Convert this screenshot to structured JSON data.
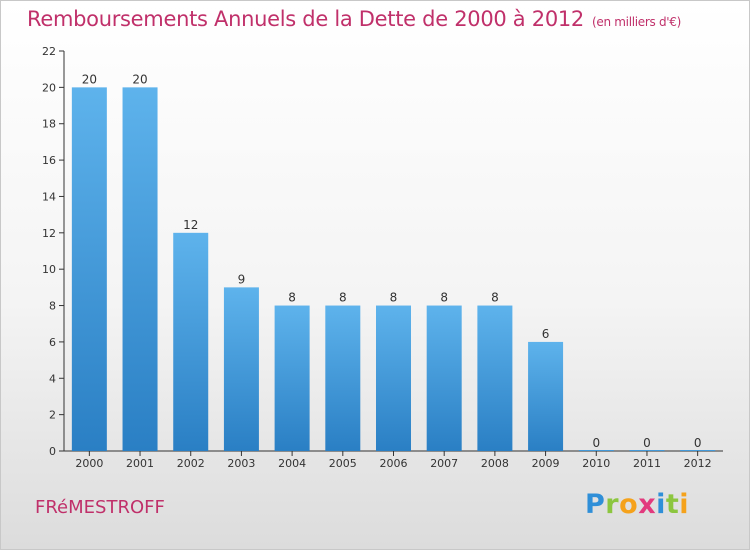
{
  "title": "Remboursements Annuels de la Dette de 2000 à 2012",
  "unit": "(en milliers d'€)",
  "commune": "FRéMESTROFF",
  "logo": {
    "letters": [
      {
        "char": "P",
        "color": "#2f8fd8"
      },
      {
        "char": "r",
        "color": "#8cc63f"
      },
      {
        "char": "o",
        "color": "#f5a21b"
      },
      {
        "char": "x",
        "color": "#e23a7e"
      },
      {
        "char": "i",
        "color": "#2f8fd8"
      },
      {
        "char": "t",
        "color": "#8cc63f"
      },
      {
        "char": "i",
        "color": "#f5a21b"
      }
    ]
  },
  "colors": {
    "title": "#c0306a",
    "bar_top": "#5eb3ec",
    "bar_bottom": "#2a7fc4",
    "axis": "#333333"
  },
  "chart_data": {
    "type": "bar",
    "title": "Remboursements Annuels de la Dette de 2000 à 2012",
    "subtitle": "(en milliers d'€)",
    "xlabel": "",
    "ylabel": "",
    "categories": [
      "2000",
      "2001",
      "2002",
      "2003",
      "2004",
      "2005",
      "2006",
      "2007",
      "2008",
      "2009",
      "2010",
      "2011",
      "2012"
    ],
    "values": [
      20,
      20,
      12,
      9,
      8,
      8,
      8,
      8,
      8,
      6,
      0,
      0,
      0
    ],
    "value_labels": [
      "20",
      "20",
      "12",
      "9",
      "8",
      "8",
      "8",
      "8",
      "8",
      "6",
      "0",
      "0",
      "0"
    ],
    "ylim": [
      0,
      22
    ],
    "yticks": [
      "0",
      "2",
      "4",
      "6",
      "8",
      "10",
      "12",
      "14",
      "16",
      "18",
      "20",
      "22"
    ],
    "grid": false,
    "legend": "none"
  }
}
